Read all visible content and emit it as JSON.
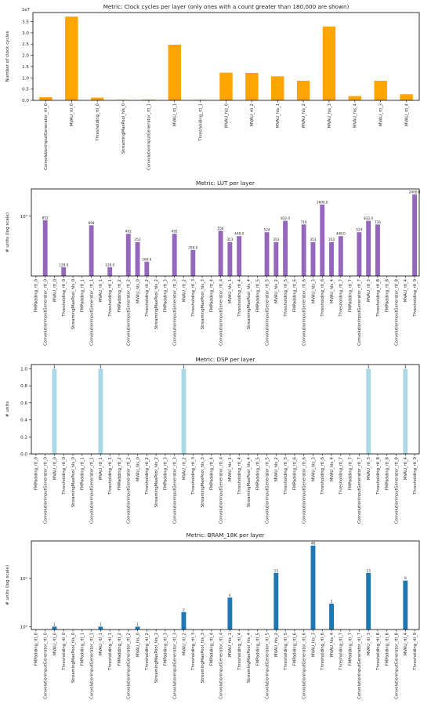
{
  "chart_data": [
    {
      "type": "bar",
      "title": "Metric: Clock cycles per layer (only ones with a count greater than 180,000 are shown)",
      "ylabel": "Number of clock cycles",
      "scale_note": "1e7",
      "color": "#FFA500",
      "ylim": [
        0,
        3.9
      ],
      "yticks": [
        "0.0",
        "0.5",
        "1.0",
        "1.5",
        "2.0",
        "2.5",
        "3.0",
        "3.5"
      ],
      "categories": [
        "ConvolutionInputGenerator_rtl_0",
        "MVAU_rtl_0",
        "Thresholding_rtl_0",
        "StreamingMaxPool_hls_0",
        "ConvolutionInputGenerator_rtl_1",
        "MVAU_rtl_1",
        "Thresholding_rtl_1",
        "MVAU_hls_0",
        "MVAU_rtl_2",
        "MVAU_hls_1",
        "MVAU_hls_2",
        "MVAU_hls_3",
        "MVAU_hls_4",
        "MVAU_rtl_3",
        "MVAU_rtl_4"
      ],
      "values": [
        0.14,
        3.72,
        0.12,
        0.02,
        0.03,
        2.47,
        0.02,
        1.23,
        1.22,
        1.07,
        0.87,
        3.28,
        0.19,
        0.87,
        0.27
      ]
    },
    {
      "type": "bar",
      "title": "Metric: LUT per layer",
      "ylabel": "# units (log scale)",
      "color": "#9467BD",
      "yscale": "log",
      "ytick_label": "10³",
      "categories": [
        "FMPadding_rtl_0",
        "ConvolutionInputGenerator_rtl_0",
        "MVAU_rtl_0",
        "Thresholding_rtl_0",
        "StreamingMaxPool_hls_0",
        "FMPadding_rtl_1",
        "ConvolutionInputGenerator_rtl_1",
        "MVAU_rtl_1",
        "Thresholding_rtl_1",
        "FMPadding_rtl_2",
        "ConvolutionInputGenerator_rtl_2",
        "MVAU_hls_0",
        "Thresholding_rtl_2",
        "StreamingMaxPool_hls_2",
        "FMPadding_rtl_3",
        "ConvolutionInputGenerator_rtl_3",
        "MVAU_rtl_2",
        "Thresholding_rtl_3",
        "StreamingMaxPool_hls_3",
        "FMPadding_rtl_4",
        "ConvolutionInputGenerator_rtl_4",
        "MVAU_hls_1",
        "Thresholding_rtl_4",
        "StreamingMaxPool_hls_4",
        "FMPadding_rtl_5",
        "ConvolutionInputGenerator_rtl_5",
        "MVAU_hls_2",
        "Thresholding_rtl_5",
        "FMPadding_rtl_6",
        "ConvolutionInputGenerator_rtl_6",
        "MVAU_hls_3",
        "Thresholding_rtl_6",
        "MVAU_hls_4",
        "Thresholding_rtl_7",
        "FMPadding_rtl_7",
        "ConvolutionInputGenerator_rtl_7",
        "MVAU_rtl_3",
        "Thresholding_rtl_8",
        "FMPadding_rtl_8",
        "ConvolutionInputGenerator_rtl_8",
        "MVAU_rtl_4",
        "Thresholding_rtl_9"
      ],
      "values": [
        null,
        852,
        null,
        128.0,
        null,
        null,
        694,
        null,
        128.0,
        null,
        492,
        353,
        160.0,
        null,
        null,
        492,
        null,
        256.0,
        null,
        null,
        556,
        353,
        448.0,
        null,
        null,
        524,
        353,
        832.0,
        null,
        716,
        353,
        1600.0,
        353,
        448.0,
        null,
        524,
        832.0,
        716,
        null,
        null,
        null,
        2400.0
      ],
      "value_labels": [
        "",
        "852",
        "",
        "128.0",
        "",
        "",
        "694",
        "",
        "128.0",
        "",
        "492",
        "353",
        "160.0",
        "",
        "",
        "492",
        "",
        "256.0",
        "",
        "",
        "556",
        "353",
        "448.0",
        "",
        "",
        "524",
        "353",
        "832.0",
        "",
        "716",
        "353",
        "1600.0",
        "353",
        "448.0",
        "",
        "524",
        "832.0",
        "716",
        "",
        "",
        "",
        "2400.0"
      ]
    },
    {
      "type": "bar",
      "title": "Metric: DSP per layer",
      "ylabel": "# units",
      "color": "#ADD8E6",
      "ylim": [
        0,
        1.05
      ],
      "yticks": [
        "0.0",
        "0.2",
        "0.4",
        "0.6",
        "0.8",
        "1.0"
      ],
      "categories": [
        "FMPadding_rtl_0",
        "ConvolutionInputGenerator_rtl_0",
        "MVAU_rtl_0",
        "Thresholding_rtl_0",
        "StreamingMaxPool_hls_0",
        "FMPadding_rtl_1",
        "ConvolutionInputGenerator_rtl_1",
        "MVAU_rtl_1",
        "Thresholding_rtl_1",
        "FMPadding_rtl_2",
        "ConvolutionInputGenerator_rtl_2",
        "MVAU_hls_0",
        "Thresholding_rtl_2",
        "StreamingMaxPool_hls_2",
        "FMPadding_rtl_3",
        "ConvolutionInputGenerator_rtl_3",
        "MVAU_rtl_2",
        "Thresholding_rtl_3",
        "StreamingMaxPool_hls_3",
        "FMPadding_rtl_4",
        "ConvolutionInputGenerator_rtl_4",
        "MVAU_hls_1",
        "Thresholding_rtl_4",
        "StreamingMaxPool_hls_4",
        "FMPadding_rtl_5",
        "ConvolutionInputGenerator_rtl_5",
        "MVAU_hls_2",
        "Thresholding_rtl_5",
        "FMPadding_rtl_6",
        "ConvolutionInputGenerator_rtl_6",
        "MVAU_hls_3",
        "Thresholding_rtl_6",
        "MVAU_hls_4",
        "Thresholding_rtl_7",
        "FMPadding_rtl_7",
        "ConvolutionInputGenerator_rtl_7",
        "MVAU_rtl_3",
        "Thresholding_rtl_8",
        "FMPadding_rtl_8",
        "ConvolutionInputGenerator_rtl_8",
        "MVAU_rtl_4",
        "Thresholding_rtl_9"
      ],
      "values": [
        0,
        0,
        1,
        0,
        0,
        0,
        0,
        1,
        0,
        0,
        0,
        0,
        0,
        0,
        0,
        0,
        1,
        0,
        0,
        0,
        0,
        0,
        0,
        0,
        0,
        0,
        0,
        0,
        0,
        0,
        0,
        0,
        0,
        0,
        0,
        0,
        1,
        0,
        0,
        0,
        1,
        0
      ],
      "value_labels": [
        "",
        "",
        "1",
        "",
        "",
        "",
        "",
        "1",
        "",
        "",
        "",
        "",
        "",
        "",
        "",
        "",
        "1",
        "",
        "",
        "",
        "",
        "",
        "",
        "",
        "",
        "",
        "",
        "",
        "",
        "",
        "",
        "",
        "",
        "",
        "",
        "",
        "1",
        "",
        "",
        "",
        "1",
        ""
      ]
    },
    {
      "type": "bar",
      "title": "Metric: BRAM_18K per layer",
      "ylabel": "# units (log scale)",
      "color": "#1F77B4",
      "yscale": "log",
      "ytick_labels": [
        "10⁰",
        "10¹"
      ],
      "categories": [
        "FMPadding_rtl_0",
        "ConvolutionInputGenerator_rtl_0",
        "MVAU_rtl_0",
        "Thresholding_rtl_0",
        "StreamingMaxPool_hls_0",
        "FMPadding_rtl_1",
        "ConvolutionInputGenerator_rtl_1",
        "MVAU_rtl_1",
        "Thresholding_rtl_1",
        "FMPadding_rtl_2",
        "ConvolutionInputGenerator_rtl_2",
        "MVAU_hls_0",
        "Thresholding_rtl_2",
        "StreamingMaxPool_hls_2",
        "FMPadding_rtl_3",
        "ConvolutionInputGenerator_rtl_3",
        "MVAU_rtl_2",
        "Thresholding_rtl_3",
        "StreamingMaxPool_hls_3",
        "FMPadding_rtl_4",
        "ConvolutionInputGenerator_rtl_4",
        "MVAU_hls_1",
        "Thresholding_rtl_4",
        "StreamingMaxPool_hls_4",
        "FMPadding_rtl_5",
        "ConvolutionInputGenerator_rtl_5",
        "MVAU_hls_2",
        "Thresholding_rtl_5",
        "FMPadding_rtl_6",
        "ConvolutionInputGenerator_rtl_6",
        "MVAU_hls_3",
        "Thresholding_rtl_6",
        "MVAU_hls_4",
        "Thresholding_rtl_7",
        "FMPadding_rtl_7",
        "ConvolutionInputGenerator_rtl_7",
        "MVAU_rtl_3",
        "Thresholding_rtl_8",
        "FMPadding_rtl_8",
        "ConvolutionInputGenerator_rtl_8",
        "MVAU_rtl_4",
        "Thresholding_rtl_9"
      ],
      "values": [
        null,
        null,
        1,
        null,
        null,
        null,
        null,
        1,
        null,
        null,
        null,
        1,
        null,
        null,
        null,
        null,
        2,
        null,
        null,
        null,
        null,
        4,
        null,
        null,
        null,
        null,
        13,
        null,
        null,
        null,
        48,
        null,
        3,
        null,
        null,
        null,
        13,
        null,
        null,
        null,
        9,
        null
      ],
      "value_labels": [
        "",
        "",
        "1",
        "",
        "",
        "",
        "",
        "1",
        "",
        "",
        "",
        "1",
        "",
        "",
        "",
        "",
        "2",
        "",
        "",
        "",
        "",
        "4",
        "",
        "",
        "",
        "",
        "13",
        "",
        "",
        "",
        "48",
        "",
        "3",
        "",
        "",
        "",
        "13",
        "",
        "",
        "",
        "9",
        ""
      ]
    }
  ]
}
